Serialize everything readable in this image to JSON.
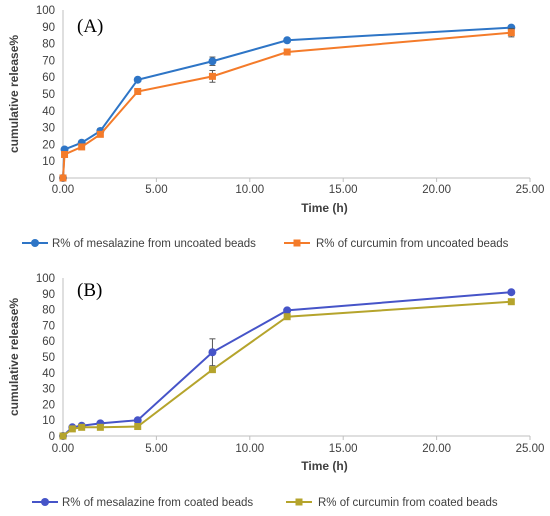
{
  "chart_data": [
    {
      "type": "line",
      "panel_label": "(A)",
      "xlabel": "Time (h)",
      "ylabel": "cumulative release%",
      "xlim": [
        0,
        25
      ],
      "ylim": [
        0,
        100
      ],
      "x_ticks": [
        "0.00",
        "5.00",
        "10.00",
        "15.00",
        "20.00",
        "25.00"
      ],
      "y_ticks": [
        "0",
        "10",
        "20",
        "30",
        "40",
        "50",
        "60",
        "70",
        "80",
        "90",
        "100"
      ],
      "grid": false,
      "legend_position": "bottom",
      "series": [
        {
          "name": "R% of  mesalazine from uncoated beads",
          "color": "#2E75C6",
          "x": [
            0,
            0.083,
            1,
            2,
            4,
            8,
            12,
            24
          ],
          "y": [
            0,
            17,
            21,
            28,
            58.5,
            69.5,
            82,
            89.5
          ],
          "err": [
            0,
            1,
            1,
            1.5,
            1,
            2.5,
            1,
            1
          ]
        },
        {
          "name": "R% of curcumin from uncoated beads",
          "color": "#F47B2A",
          "x": [
            0,
            0.083,
            1,
            2,
            4,
            8,
            12,
            24
          ],
          "y": [
            0,
            14,
            18.5,
            26,
            51.5,
            60.5,
            75,
            86.5
          ],
          "err": [
            0,
            1,
            1.5,
            1.5,
            1,
            3.5,
            1,
            2.5
          ]
        }
      ]
    },
    {
      "type": "line",
      "panel_label": "(B)",
      "xlabel": "Time (h)",
      "ylabel": "cumulative release%",
      "xlim": [
        0,
        25
      ],
      "ylim": [
        0,
        100
      ],
      "x_ticks": [
        "0.00",
        "5.00",
        "10.00",
        "15.00",
        "20.00",
        "25.00"
      ],
      "y_ticks": [
        "0",
        "10",
        "20",
        "30",
        "40",
        "50",
        "60",
        "70",
        "80",
        "90",
        "100"
      ],
      "grid": false,
      "legend_position": "bottom",
      "series": [
        {
          "name": "R% of mesalazine from coated beads",
          "color": "#4654C8",
          "x": [
            0,
            0.5,
            1,
            2,
            4,
            8,
            12,
            24
          ],
          "y": [
            0,
            5.5,
            6.5,
            8,
            10,
            53,
            79.5,
            91
          ],
          "err": [
            0,
            0.5,
            0.5,
            0.5,
            0.5,
            8.5,
            1,
            1
          ]
        },
        {
          "name": "R% of curcumin from coated beads",
          "color": "#B5A42C",
          "x": [
            0,
            0.5,
            1,
            2,
            4,
            8,
            12,
            24
          ],
          "y": [
            0,
            4.5,
            5.5,
            5.5,
            6,
            42,
            75.5,
            85
          ],
          "err": [
            0,
            0.5,
            0.5,
            0.5,
            0.5,
            1.5,
            1,
            1.5
          ]
        }
      ]
    }
  ]
}
